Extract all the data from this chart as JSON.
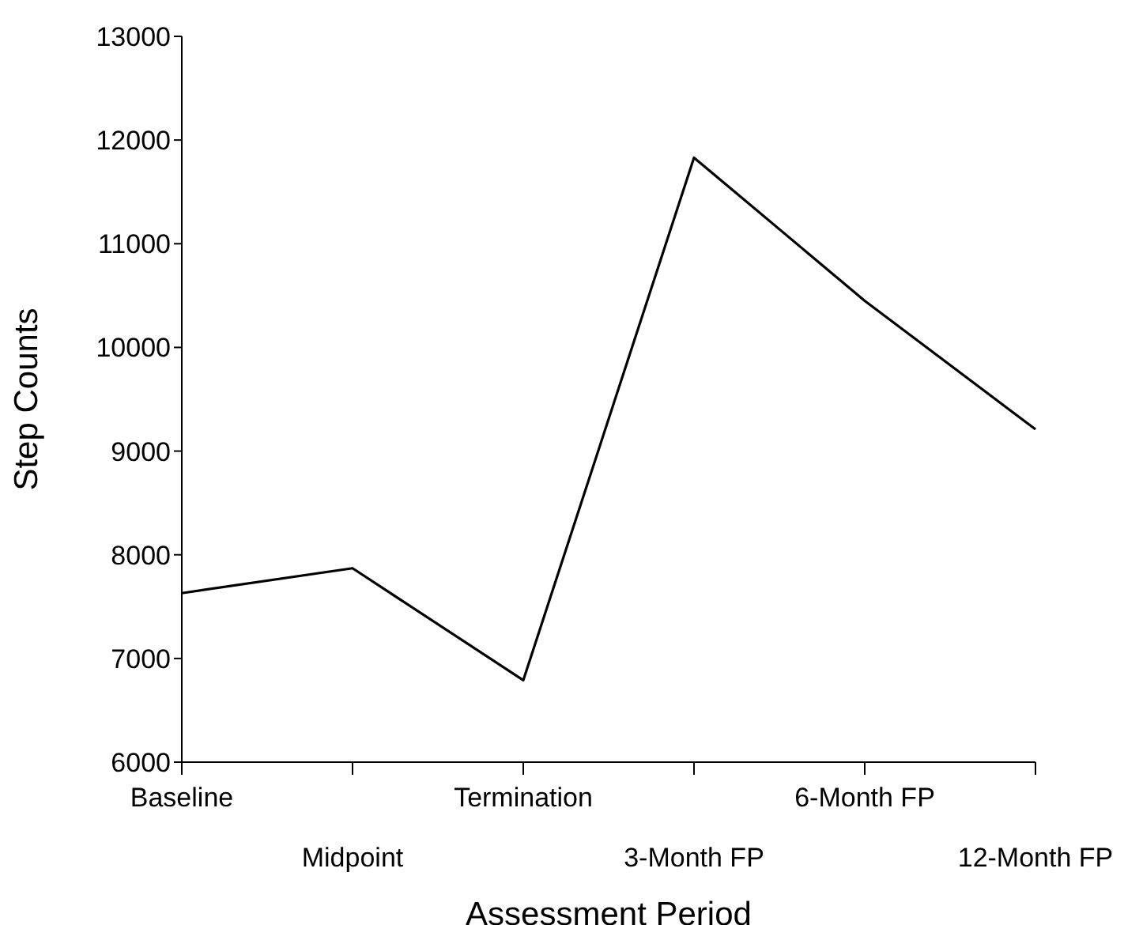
{
  "chart_data": {
    "type": "line",
    "xlabel": "Assessment Period",
    "ylabel": "Step Counts",
    "categories": [
      "Baseline",
      "Midpoint",
      "Termination",
      "3-Month FP",
      "6-Month FP",
      "12-Month FP"
    ],
    "series": [
      {
        "color": "#000000",
        "values": [
          7630,
          7870,
          6790,
          11830,
          10450,
          9210
        ]
      }
    ],
    "ylim": [
      6000,
      13000
    ],
    "yticks": [
      6000,
      7000,
      8000,
      9000,
      10000,
      11000,
      12000,
      13000
    ],
    "grid": false,
    "legend": false,
    "marker": "none",
    "line_style": "solid"
  }
}
